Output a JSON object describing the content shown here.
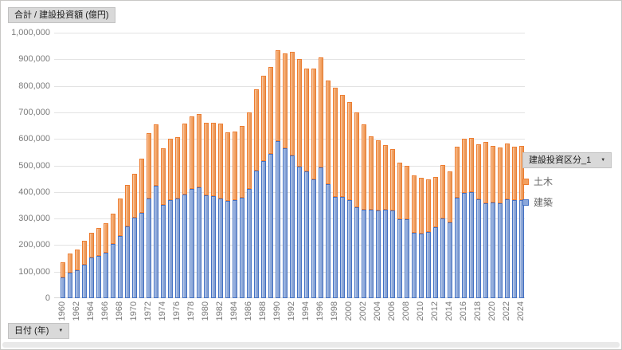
{
  "buttons": {
    "value_field": "合計 / 建設投資額 (億円)",
    "axis_field": "日付 (年)",
    "legend_field": "建設投資区分_1"
  },
  "y_axis": {
    "tick_labels": [
      "1,000,000",
      "900,000",
      "800,000",
      "700,000",
      "600,000",
      "500,000",
      "400,000",
      "300,000",
      "200,000",
      "100,000",
      "0"
    ],
    "max": 1000000,
    "step": 100000
  },
  "legend": {
    "items": [
      {
        "label": "土木",
        "fill": "#F3A05F",
        "border": "#ED7D31"
      },
      {
        "label": "建築",
        "fill": "#8BA7DA",
        "border": "#4472C4"
      }
    ]
  },
  "chart_data": {
    "type": "bar",
    "stacked": true,
    "title": "合計 / 建設投資額 (億円)",
    "xlabel": "日付 (年)",
    "ylabel": "建設投資額 (億円)",
    "ylim": [
      0,
      1000000
    ],
    "grid": true,
    "legend_position": "right",
    "x": [
      1960,
      1961,
      1962,
      1963,
      1964,
      1965,
      1966,
      1967,
      1968,
      1969,
      1970,
      1971,
      1972,
      1973,
      1974,
      1975,
      1976,
      1977,
      1978,
      1979,
      1980,
      1981,
      1982,
      1983,
      1984,
      1985,
      1986,
      1987,
      1988,
      1989,
      1990,
      1991,
      1992,
      1993,
      1994,
      1995,
      1996,
      1997,
      1998,
      1999,
      2000,
      2001,
      2002,
      2003,
      2004,
      2005,
      2006,
      2007,
      2008,
      2009,
      2010,
      2011,
      2012,
      2013,
      2014,
      2015,
      2016,
      2017,
      2018,
      2019,
      2020,
      2021,
      2022,
      2023,
      2024
    ],
    "x_tick_every": 2,
    "series": [
      {
        "name": "建築",
        "fill": "#8BA7DA",
        "border": "#4472C4",
        "values": [
          78000,
          97000,
          105000,
          125000,
          152000,
          158000,
          170000,
          205000,
          233000,
          270000,
          302000,
          322000,
          375000,
          422000,
          352000,
          370000,
          374000,
          390000,
          412000,
          417000,
          388000,
          383000,
          375000,
          367000,
          369000,
          378000,
          410000,
          480000,
          517000,
          543000,
          592000,
          566000,
          539000,
          495000,
          478000,
          448000,
          492000,
          428000,
          382000,
          380000,
          368000,
          342000,
          332000,
          333000,
          330000,
          333000,
          330000,
          298000,
          296000,
          245000,
          243000,
          250000,
          266000,
          300000,
          286000,
          378000,
          395000,
          398000,
          372000,
          358000,
          360000,
          356000,
          371000,
          368000,
          370000
        ]
      },
      {
        "name": "土木",
        "fill": "#F3A05F",
        "border": "#ED7D31",
        "values": [
          57000,
          71000,
          78000,
          90000,
          93000,
          104000,
          110000,
          115000,
          142000,
          157000,
          165000,
          203000,
          247000,
          230000,
          212000,
          230000,
          231000,
          267000,
          273000,
          275000,
          272000,
          277000,
          281000,
          258000,
          258000,
          270000,
          287000,
          305000,
          320000,
          327000,
          343000,
          357000,
          390000,
          405000,
          387000,
          417000,
          415000,
          389000,
          410000,
          385000,
          369000,
          358000,
          321000,
          277000,
          265000,
          242000,
          232000,
          212000,
          202000,
          217000,
          209000,
          198000,
          190000,
          202000,
          191000,
          192000,
          203000,
          204000,
          208000,
          230000,
          212000,
          210000,
          211000,
          202000,
          204000
        ]
      }
    ]
  }
}
